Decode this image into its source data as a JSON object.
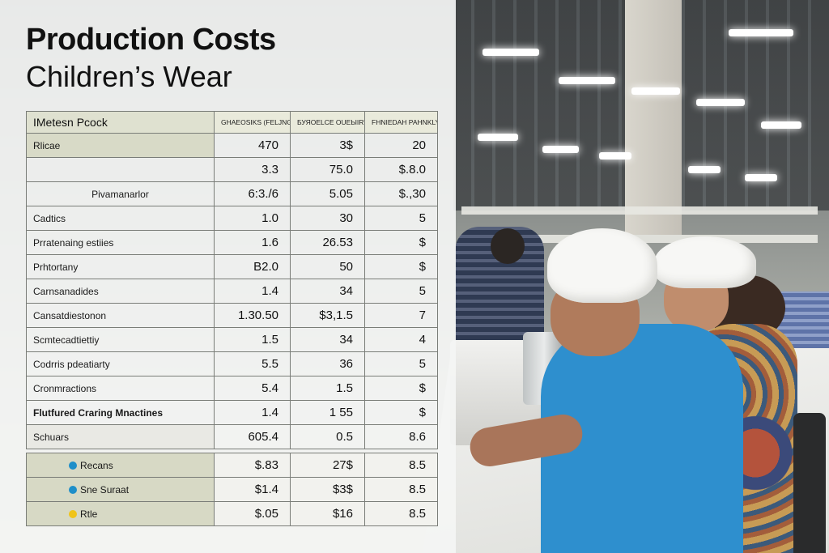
{
  "title": "Production Costs",
  "subtitle": "Children’s Wear",
  "table": {
    "headers": [
      "IMetesn Pcock",
      "GHAEOSIKS (FELJNGW",
      "БУЯОЕLCE OUЕЫIRY",
      "FHNIEDAH PAHNKLY"
    ],
    "rows": [
      {
        "label": "Rlicae",
        "values": [
          "470",
          "3$",
          "20"
        ],
        "style": "shade"
      },
      {
        "label": "",
        "values": [
          "3.3",
          "75.0",
          "$.8.0"
        ],
        "style": ""
      },
      {
        "label": "Pivamanarlor",
        "values": [
          "6:3./6",
          "5.05",
          "$.,30"
        ],
        "style": "center"
      },
      {
        "label": "Cadtics",
        "values": [
          "1.0",
          "30",
          "5"
        ],
        "style": ""
      },
      {
        "label": "Prratenaing estiies",
        "values": [
          "1.6",
          "26.53",
          "$"
        ],
        "style": ""
      },
      {
        "label": "Prhtortany",
        "values": [
          "B2.0",
          "50",
          "$"
        ],
        "style": ""
      },
      {
        "label": "Carnsanadides",
        "values": [
          "1.4",
          "34",
          "5"
        ],
        "style": ""
      },
      {
        "label": "Cansatdiestonon",
        "values": [
          "1.30.50",
          "$3,1.5",
          "7"
        ],
        "style": ""
      },
      {
        "label": "Scmtecadtiettiy",
        "values": [
          "1.5",
          "34",
          "4"
        ],
        "style": ""
      },
      {
        "label": "Codrris pdeatiarty",
        "values": [
          "5.5",
          "36",
          "5"
        ],
        "style": ""
      },
      {
        "label": "Cronmractions",
        "values": [
          "5.4",
          "1.5",
          "$"
        ],
        "style": ""
      },
      {
        "label": "Flutfured Craring Mnactines",
        "values": [
          "1.4",
          "1 55",
          "$"
        ],
        "style": "bold"
      },
      {
        "label": "Schuars",
        "values": [
          "605.4",
          "0.5",
          "8.6"
        ],
        "style": "grey"
      }
    ],
    "legend_rows": [
      {
        "label": "Recans",
        "dot_color": "#1f8fc9",
        "values": [
          "$.83",
          "27$",
          "8.5"
        ]
      },
      {
        "label": "Sne Suraat",
        "dot_color": "#1f8fc9",
        "values": [
          "$1.4",
          "$3$",
          "8.5"
        ]
      },
      {
        "label": "Rtle",
        "dot_color": "#f0c419",
        "values": [
          "$.05",
          "$16",
          "8.5"
        ]
      }
    ]
  }
}
